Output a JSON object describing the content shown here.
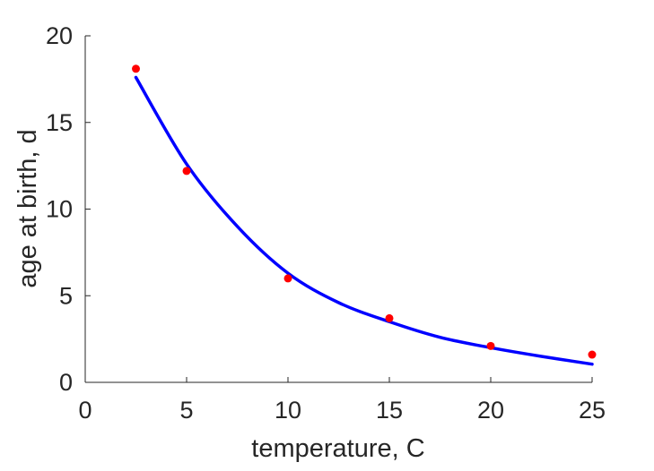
{
  "chart_data": {
    "type": "scatter",
    "title": "",
    "xlabel": "temperature, C",
    "ylabel": "age at birth, d",
    "xlim": [
      0,
      25
    ],
    "ylim": [
      0,
      20
    ],
    "xticks": [
      "0",
      "5",
      "10",
      "15",
      "20",
      "25"
    ],
    "yticks": [
      "0",
      "5",
      "10",
      "15",
      "20"
    ],
    "grid": false,
    "legend": "none",
    "series": [
      {
        "kind": "points",
        "color": "#ff0000",
        "x": [
          2.5,
          5,
          10,
          15,
          20,
          25
        ],
        "y": [
          18.1,
          12.2,
          6.0,
          3.7,
          2.1,
          1.6
        ]
      },
      {
        "kind": "line",
        "color": "#0000ff",
        "x": [
          2.5,
          5,
          7.5,
          10,
          12.5,
          15,
          17.5,
          20,
          22.5,
          25
        ],
        "y": [
          17.6,
          12.6,
          9.0,
          6.3,
          4.6,
          3.5,
          2.6,
          2.0,
          1.5,
          1.05
        ]
      }
    ]
  }
}
